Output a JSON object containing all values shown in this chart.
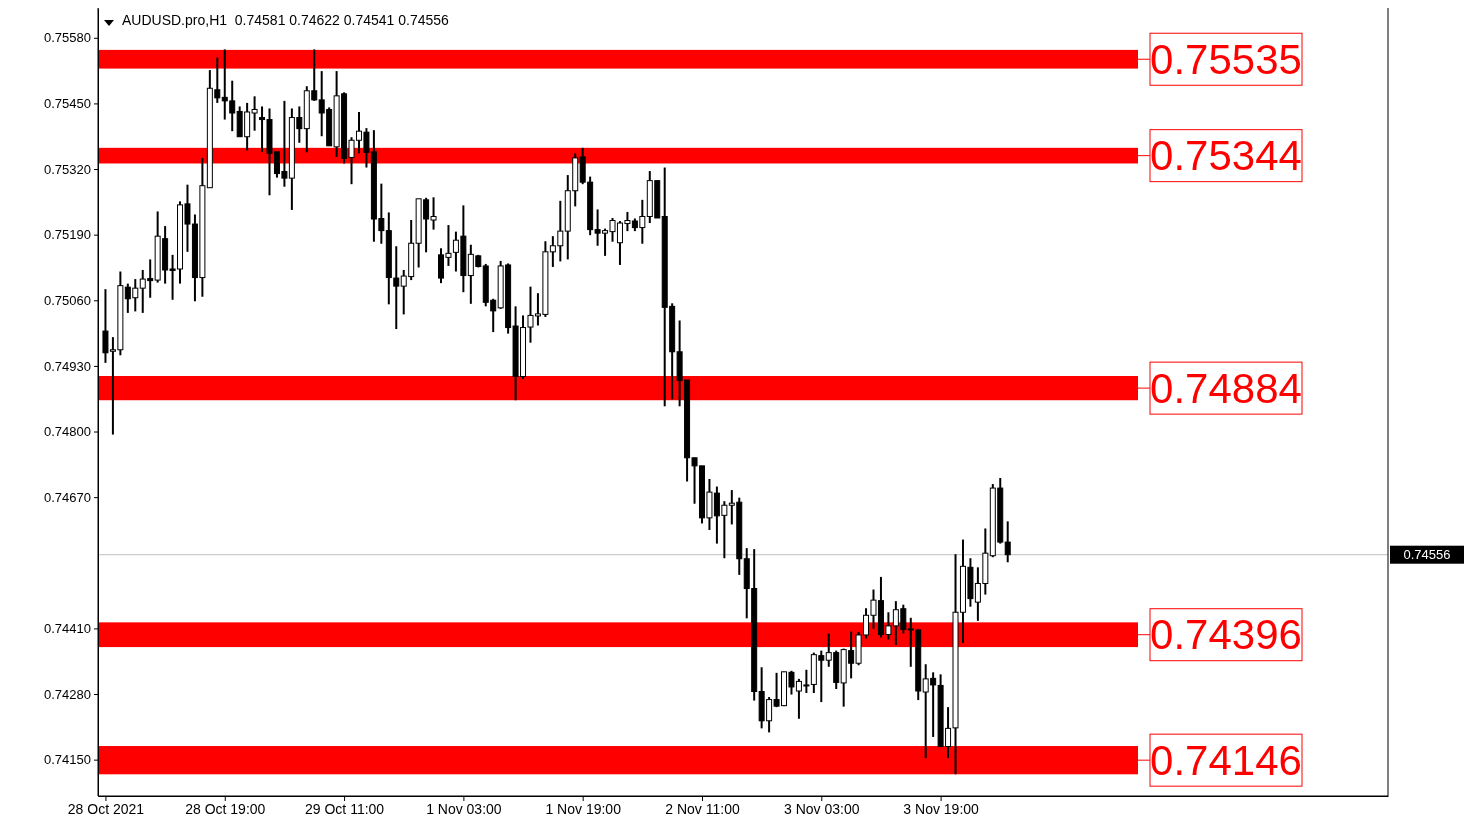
{
  "chart_data": {
    "type": "candlestick",
    "title": "AUDUSD.pro,H1  0.74581 0.74622 0.74541 0.74556",
    "categories": [
      "28 Oct 2021",
      null,
      null,
      null,
      null,
      null,
      null,
      null,
      null,
      null,
      null,
      null,
      null,
      null,
      null,
      null,
      "28 Oct 19:00",
      null,
      null,
      null,
      null,
      null,
      null,
      null,
      null,
      null,
      null,
      null,
      null,
      null,
      null,
      null,
      "29 Oct 11:00",
      null,
      null,
      null,
      null,
      null,
      null,
      null,
      null,
      null,
      null,
      null,
      null,
      null,
      null,
      null,
      "1 Nov 03:00",
      null,
      null,
      null,
      null,
      null,
      null,
      null,
      null,
      null,
      null,
      null,
      null,
      null,
      null,
      null,
      "1 Nov 19:00",
      null,
      null,
      null,
      null,
      null,
      null,
      null,
      null,
      null,
      null,
      null,
      null,
      null,
      null,
      null,
      "2 Nov 11:00",
      null,
      null,
      null,
      null,
      null,
      null,
      null,
      null,
      null,
      null,
      null,
      null,
      null,
      null,
      null,
      "3 Nov 03:00",
      null,
      null,
      null,
      null,
      null,
      null,
      null,
      null,
      null,
      null,
      null,
      null,
      null,
      null,
      null,
      "3 Nov 19:00",
      null,
      null,
      null,
      null,
      null,
      null,
      null,
      null,
      null
    ],
    "ohlc": [
      [
        0.74999,
        0.75082,
        0.74936,
        0.74956
      ],
      [
        0.74959,
        0.74987,
        0.74794,
        0.74962
      ],
      [
        0.74962,
        0.75117,
        0.74951,
        0.75089
      ],
      [
        0.75086,
        0.75093,
        0.75035,
        0.75063
      ],
      [
        0.75065,
        0.75102,
        0.75038,
        0.75084
      ],
      [
        0.75084,
        0.7512,
        0.75035,
        0.75102
      ],
      [
        0.75103,
        0.75141,
        0.75065,
        0.75099
      ],
      [
        0.751,
        0.75236,
        0.75095,
        0.75187
      ],
      [
        0.75182,
        0.75207,
        0.75093,
        0.7512
      ],
      [
        0.75122,
        0.7515,
        0.75061,
        0.75119
      ],
      [
        0.75122,
        0.75256,
        0.75093,
        0.75249
      ],
      [
        0.75251,
        0.75289,
        0.75156,
        0.75211
      ],
      [
        0.75211,
        0.7523,
        0.75058,
        0.75105
      ],
      [
        0.75105,
        0.75342,
        0.75067,
        0.75287
      ],
      [
        0.75283,
        0.75516,
        0.75283,
        0.7548
      ],
      [
        0.75477,
        0.75541,
        0.75451,
        0.75461
      ],
      [
        0.75462,
        0.75557,
        0.75418,
        0.75455
      ],
      [
        0.75455,
        0.75495,
        0.75395,
        0.75431
      ],
      [
        0.75434,
        0.75444,
        0.75384,
        0.75384
      ],
      [
        0.75384,
        0.75451,
        0.75357,
        0.75433
      ],
      [
        0.75431,
        0.75464,
        0.75396,
        0.75438
      ],
      [
        0.75422,
        0.75444,
        0.75354,
        0.75418
      ],
      [
        0.75418,
        0.7544,
        0.75268,
        0.75351
      ],
      [
        0.75354,
        0.75354,
        0.75303,
        0.75311
      ],
      [
        0.75315,
        0.75455,
        0.75285,
        0.75302
      ],
      [
        0.75302,
        0.7544,
        0.75239,
        0.75422
      ],
      [
        0.75422,
        0.75444,
        0.75372,
        0.754
      ],
      [
        0.754,
        0.75484,
        0.75353,
        0.75475
      ],
      [
        0.75475,
        0.75557,
        0.75455,
        0.75457
      ],
      [
        0.75457,
        0.75514,
        0.75385,
        0.75431
      ],
      [
        0.75438,
        0.75442,
        0.75366,
        0.75366
      ],
      [
        0.75364,
        0.75514,
        0.75344,
        0.75465
      ],
      [
        0.75469,
        0.75472,
        0.75331,
        0.75341
      ],
      [
        0.75343,
        0.75383,
        0.7529,
        0.75377
      ],
      [
        0.75377,
        0.75433,
        0.75351,
        0.75395
      ],
      [
        0.75393,
        0.75401,
        0.75323,
        0.75353
      ],
      [
        0.75354,
        0.75397,
        0.75176,
        0.75221
      ],
      [
        0.75222,
        0.75291,
        0.75172,
        0.75198
      ],
      [
        0.75198,
        0.75234,
        0.75052,
        0.75105
      ],
      [
        0.75104,
        0.75167,
        0.75003,
        0.75088
      ],
      [
        0.75088,
        0.7512,
        0.75032,
        0.75108
      ],
      [
        0.75107,
        0.75219,
        0.751,
        0.75173
      ],
      [
        0.75173,
        0.75261,
        0.75125,
        0.75261
      ],
      [
        0.75259,
        0.75263,
        0.75155,
        0.75221
      ],
      [
        0.75219,
        0.75264,
        0.752,
        0.75226
      ],
      [
        0.7515,
        0.75163,
        0.75094,
        0.75104
      ],
      [
        0.75145,
        0.75209,
        0.75128,
        0.75153
      ],
      [
        0.75155,
        0.75196,
        0.75117,
        0.75179
      ],
      [
        0.75187,
        0.75248,
        0.75076,
        0.75109
      ],
      [
        0.75109,
        0.7517,
        0.75053,
        0.75151
      ],
      [
        0.75148,
        0.7515,
        0.75125,
        0.75127
      ],
      [
        0.75128,
        0.75132,
        0.75048,
        0.75056
      ],
      [
        0.7506,
        0.75063,
        0.74997,
        0.75039
      ],
      [
        0.75045,
        0.75138,
        0.75043,
        0.75128
      ],
      [
        0.7513,
        0.75133,
        0.74994,
        0.75006
      ],
      [
        0.75009,
        0.75048,
        0.74862,
        0.74909
      ],
      [
        0.74909,
        0.7503,
        0.74904,
        0.75006
      ],
      [
        0.75007,
        0.75087,
        0.74976,
        0.7503
      ],
      [
        0.75029,
        0.75074,
        0.7501,
        0.75033
      ],
      [
        0.75032,
        0.75177,
        0.75027,
        0.75156
      ],
      [
        0.75156,
        0.75187,
        0.75126,
        0.75168
      ],
      [
        0.75168,
        0.75257,
        0.75137,
        0.75197
      ],
      [
        0.75197,
        0.75308,
        0.75141,
        0.75277
      ],
      [
        0.75277,
        0.75351,
        0.75246,
        0.75342
      ],
      [
        0.75344,
        0.75362,
        0.7529,
        0.75294
      ],
      [
        0.75294,
        0.75305,
        0.75189,
        0.752
      ],
      [
        0.752,
        0.7524,
        0.75168,
        0.75193
      ],
      [
        0.75193,
        0.75202,
        0.75148,
        0.75198
      ],
      [
        0.75196,
        0.75223,
        0.75176,
        0.75218
      ],
      [
        0.75174,
        0.75217,
        0.7513,
        0.75213
      ],
      [
        0.75212,
        0.75235,
        0.75197,
        0.75218
      ],
      [
        0.75217,
        0.75222,
        0.75197,
        0.75204
      ],
      [
        0.75204,
        0.75259,
        0.75172,
        0.75226
      ],
      [
        0.75226,
        0.75316,
        0.75213,
        0.75297
      ],
      [
        0.75297,
        0.75297,
        0.75223,
        0.75223
      ],
      [
        0.75226,
        0.75323,
        0.7485,
        0.75046
      ],
      [
        0.75048,
        0.75054,
        0.74864,
        0.74958
      ],
      [
        0.74958,
        0.7502,
        0.7485,
        0.74901
      ],
      [
        0.74902,
        0.74902,
        0.74701,
        0.74748
      ],
      [
        0.74748,
        0.74748,
        0.74657,
        0.74732
      ],
      [
        0.74732,
        0.74732,
        0.74618,
        0.74629
      ],
      [
        0.74629,
        0.74706,
        0.74605,
        0.7468
      ],
      [
        0.74678,
        0.74691,
        0.74578,
        0.74633
      ],
      [
        0.74634,
        0.74662,
        0.74549,
        0.74654
      ],
      [
        0.74654,
        0.74684,
        0.74616,
        0.74658
      ],
      [
        0.7466,
        0.74669,
        0.74516,
        0.74548
      ],
      [
        0.74548,
        0.74569,
        0.7443,
        0.74489
      ],
      [
        0.74489,
        0.74567,
        0.74267,
        0.74285
      ],
      [
        0.74285,
        0.74333,
        0.74212,
        0.74227
      ],
      [
        0.74227,
        0.74274,
        0.74204,
        0.74269
      ],
      [
        0.74269,
        0.74322,
        0.74254,
        0.74256
      ],
      [
        0.74257,
        0.74324,
        0.74256,
        0.74324
      ],
      [
        0.74323,
        0.74326,
        0.74279,
        0.74294
      ],
      [
        0.74286,
        0.7431,
        0.74231,
        0.74305
      ],
      [
        0.74297,
        0.74328,
        0.74282,
        0.74298
      ],
      [
        0.74299,
        0.74362,
        0.74282,
        0.74358
      ],
      [
        0.74356,
        0.74366,
        0.74264,
        0.74347
      ],
      [
        0.74347,
        0.744,
        0.74334,
        0.74362
      ],
      [
        0.74362,
        0.74366,
        0.7429,
        0.74303
      ],
      [
        0.74302,
        0.7437,
        0.74255,
        0.74368
      ],
      [
        0.74366,
        0.74404,
        0.74311,
        0.74341
      ],
      [
        0.74341,
        0.74403,
        0.74337,
        0.74397
      ],
      [
        0.74397,
        0.7445,
        0.7439,
        0.74436
      ],
      [
        0.74436,
        0.74487,
        0.74409,
        0.74466
      ],
      [
        0.74465,
        0.74512,
        0.74392,
        0.74398
      ],
      [
        0.74398,
        0.74442,
        0.74388,
        0.74415
      ],
      [
        0.74415,
        0.74464,
        0.74377,
        0.74447
      ],
      [
        0.74449,
        0.74457,
        0.744,
        0.74408
      ],
      [
        0.74408,
        0.74431,
        0.74334,
        0.74409
      ],
      [
        0.74407,
        0.74407,
        0.74268,
        0.74286
      ],
      [
        0.74284,
        0.74339,
        0.74153,
        0.7431
      ],
      [
        0.74311,
        0.74323,
        0.74195,
        0.74298
      ],
      [
        0.74297,
        0.74319,
        0.74176,
        0.74176
      ],
      [
        0.74176,
        0.74254,
        0.74153,
        0.74212
      ],
      [
        0.74213,
        0.74557,
        0.74121,
        0.74442
      ],
      [
        0.74442,
        0.74586,
        0.74381,
        0.74533
      ],
      [
        0.74531,
        0.74549,
        0.74453,
        0.74469
      ],
      [
        0.74462,
        0.74531,
        0.74425,
        0.74499
      ],
      [
        0.74499,
        0.74608,
        0.74477,
        0.74559
      ],
      [
        0.74554,
        0.74696,
        0.74551,
        0.74688
      ],
      [
        0.74688,
        0.74708,
        0.74578,
        0.74581
      ],
      [
        0.74581,
        0.74622,
        0.74541,
        0.74556
      ]
    ],
    "ylim": [
      0.74078,
      0.75639
    ],
    "yticks": [
      {
        "value": 0.7558,
        "label": "0.75580"
      },
      {
        "value": 0.7545,
        "label": "0.75450"
      },
      {
        "value": 0.7532,
        "label": "0.75320"
      },
      {
        "value": 0.7519,
        "label": "0.75190"
      },
      {
        "value": 0.7506,
        "label": "0.75060"
      },
      {
        "value": 0.7493,
        "label": "0.74930"
      },
      {
        "value": 0.748,
        "label": "0.74800"
      },
      {
        "value": 0.7467,
        "label": "0.74670"
      },
      {
        "value": 0.7441,
        "label": "0.74410"
      },
      {
        "value": 0.7428,
        "label": "0.74280"
      },
      {
        "value": 0.7415,
        "label": "0.74150"
      }
    ],
    "bands": [
      {
        "axis": "y",
        "from": 0.75519,
        "to": 0.75556,
        "label": "0.75535",
        "color": "#ff0000"
      },
      {
        "axis": "y",
        "from": 0.75331,
        "to": 0.75362,
        "label": "0.75344",
        "color": "#ff0000"
      },
      {
        "axis": "y",
        "from": 0.74862,
        "to": 0.7491,
        "label": "0.74884",
        "color": "#ff0000"
      },
      {
        "axis": "y",
        "from": 0.74373,
        "to": 0.74422,
        "label": "0.74396",
        "color": "#ff0000"
      },
      {
        "axis": "y",
        "from": 0.74121,
        "to": 0.74177,
        "label": "0.74146",
        "color": "#ff0000"
      }
    ],
    "ref_lines": [
      {
        "axis": "y",
        "value": 0.74556,
        "label": "0.74556",
        "color": "#c0c0c0"
      }
    ]
  }
}
